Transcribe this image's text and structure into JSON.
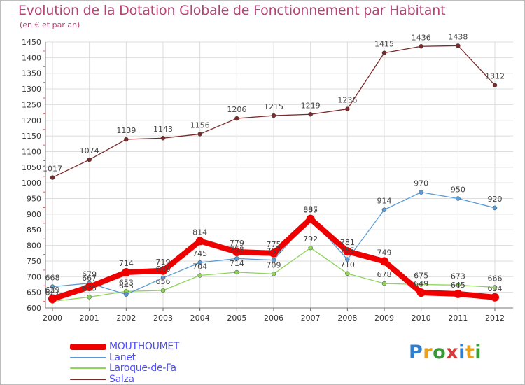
{
  "chart_data": {
    "type": "line",
    "title": "Evolution de la Dotation Globale de Fonctionnement par Habitant",
    "subtitle": "(en € et par an)",
    "xlabel": "",
    "ylabel": "",
    "ylim": [
      600,
      1450
    ],
    "y_ticks": [
      600,
      650,
      700,
      750,
      800,
      850,
      900,
      950,
      1000,
      1050,
      1100,
      1150,
      1200,
      1250,
      1300,
      1350,
      1400,
      1450
    ],
    "grid": true,
    "x": [
      "2000",
      "2001",
      "2002",
      "2003",
      "2004",
      "2005",
      "2006",
      "2007",
      "2008",
      "2009",
      "2010",
      "2011",
      "2012"
    ],
    "series": [
      {
        "name": "MOUTHOUMET",
        "color": "#ee0000",
        "values": [
          629,
          667,
          714,
          719,
          814,
          779,
          775,
          885,
          781,
          749,
          649,
          645,
          634
        ]
      },
      {
        "name": "Lanet",
        "color": "#5b9bd5",
        "values": [
          668,
          679,
          643,
          696,
          745,
          758,
          753,
          887,
          755,
          914,
          970,
          950,
          920
        ]
      },
      {
        "name": "Laroque-de-Fa",
        "color": "#8ed45a",
        "values": [
          621,
          635,
          653,
          656,
          704,
          714,
          709,
          792,
          710,
          678,
          675,
          673,
          666
        ]
      },
      {
        "name": "Salza",
        "color": "#7a2a2a",
        "values": [
          1017,
          1074,
          1139,
          1143,
          1156,
          1206,
          1215,
          1219,
          1236,
          1415,
          1436,
          1438,
          1312
        ]
      }
    ],
    "legend_position": "bottom-left"
  },
  "logo": {
    "letters": [
      {
        "ch": "P",
        "color": "#2f7fd0"
      },
      {
        "ch": "r",
        "color": "#e9a11b"
      },
      {
        "ch": "o",
        "color": "#3a9a3a"
      },
      {
        "ch": "x",
        "color": "#d43a3a"
      },
      {
        "ch": "i",
        "color": "#2f7fd0"
      },
      {
        "ch": "t",
        "color": "#e9a11b"
      },
      {
        "ch": "i",
        "color": "#3a9a3a"
      }
    ]
  }
}
